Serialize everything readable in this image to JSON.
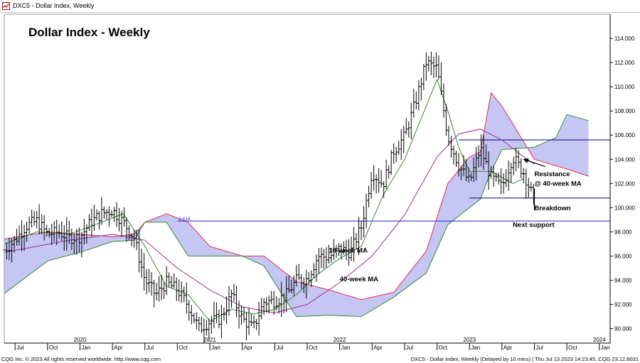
{
  "window": {
    "title": "DXC5 - Dollar Index, Weekly",
    "icon": "chart-window-icon"
  },
  "footer": {
    "left": "CQG Inc. © 2023 All rights reserved worldwide. http://www.cqg.com",
    "right": "DXC5 - Dollar Index, Weekly (Delayed by 10 mins) | Thu Jul 13 2023 14:23:45, CQG 23.12.8031"
  },
  "chart_data": {
    "type": "ohlc",
    "title": "Dollar Index - Weekly",
    "ylim": [
      88.8,
      116.0
    ],
    "y_ticks": [
      90,
      92,
      94,
      96,
      98,
      100,
      102,
      104,
      106,
      108,
      110,
      112,
      114
    ],
    "y_tick_labels": [
      "90.000",
      "92.000",
      "94.000",
      "96.000",
      "98.000",
      "100.000",
      "102.000",
      "104.000",
      "106.000",
      "108.000",
      "110.000",
      "112.000",
      "114.000"
    ],
    "x_start": "2019-06",
    "x_end": "2024-02",
    "month_ticks": [
      {
        "date": "2019-07",
        "label": "Jul"
      },
      {
        "date": "2019-10",
        "label": "Oct"
      },
      {
        "date": "2020-01",
        "label": "Jan"
      },
      {
        "date": "2020-04",
        "label": "Apr"
      },
      {
        "date": "2020-07",
        "label": "Jul"
      },
      {
        "date": "2020-10",
        "label": "Oct"
      },
      {
        "date": "2021-01",
        "label": "Jan"
      },
      {
        "date": "2021-04",
        "label": "Apr"
      },
      {
        "date": "2021-07",
        "label": "Jul"
      },
      {
        "date": "2021-10",
        "label": "Oct"
      },
      {
        "date": "2022-01",
        "label": "Jan"
      },
      {
        "date": "2022-04",
        "label": "Apr"
      },
      {
        "date": "2022-07",
        "label": "Jul"
      },
      {
        "date": "2022-10",
        "label": "Oct"
      },
      {
        "date": "2023-01",
        "label": "Jan"
      },
      {
        "date": "2023-04",
        "label": "Apr"
      },
      {
        "date": "2023-07",
        "label": "Jul"
      },
      {
        "date": "2023-10",
        "label": "Oct"
      },
      {
        "date": "2024-01",
        "label": "Jan"
      }
    ],
    "year_labels": [
      {
        "date": "2020-01",
        "label": "2020"
      },
      {
        "date": "2021-01",
        "label": "2021"
      },
      {
        "date": "2022-01",
        "label": "2022"
      },
      {
        "date": "2023-01",
        "label": "2023"
      },
      {
        "date": "2024-01",
        "label": "2024"
      }
    ],
    "price_close": [
      [
        "2019-06",
        96.5
      ],
      [
        "2019-07",
        97.3
      ],
      [
        "2019-08",
        98.5
      ],
      [
        "2019-09",
        98.9
      ],
      [
        "2019-10",
        97.8
      ],
      [
        "2019-11",
        98.0
      ],
      [
        "2019-12",
        97.5
      ],
      [
        "2020-01",
        97.6
      ],
      [
        "2020-02",
        98.8
      ],
      [
        "2020-03",
        99.5
      ],
      [
        "2020-04",
        99.8
      ],
      [
        "2020-05",
        98.8
      ],
      [
        "2020-06",
        97.5
      ],
      [
        "2020-07",
        94.0
      ],
      [
        "2020-08",
        92.8
      ],
      [
        "2020-09",
        93.8
      ],
      [
        "2020-10",
        93.2
      ],
      [
        "2020-11",
        91.9
      ],
      [
        "2020-12",
        90.0
      ],
      [
        "2021-01",
        90.6
      ],
      [
        "2021-02",
        90.8
      ],
      [
        "2021-03",
        92.8
      ],
      [
        "2021-04",
        90.8
      ],
      [
        "2021-05",
        90.0
      ],
      [
        "2021-06",
        92.2
      ],
      [
        "2021-07",
        92.3
      ],
      [
        "2021-08",
        92.7
      ],
      [
        "2021-09",
        94.0
      ],
      [
        "2021-10",
        94.1
      ],
      [
        "2021-11",
        96.0
      ],
      [
        "2021-12",
        95.9
      ],
      [
        "2022-01",
        96.6
      ],
      [
        "2022-02",
        96.3
      ],
      [
        "2022-03",
        98.4
      ],
      [
        "2022-04",
        103.0
      ],
      [
        "2022-05",
        101.9
      ],
      [
        "2022-06",
        104.7
      ],
      [
        "2022-07",
        105.9
      ],
      [
        "2022-08",
        108.7
      ],
      [
        "2022-09",
        112.0
      ],
      [
        "2022-10",
        111.5
      ],
      [
        "2022-11",
        105.9
      ],
      [
        "2022-12",
        103.5
      ],
      [
        "2023-01",
        102.1
      ],
      [
        "2023-02",
        104.9
      ],
      [
        "2023-03",
        102.5
      ],
      [
        "2023-04",
        101.7
      ],
      [
        "2023-05",
        104.2
      ],
      [
        "2023-06",
        102.9
      ],
      [
        "2023-07",
        100.6
      ]
    ],
    "ma10": [
      [
        "2019-06",
        97.0
      ],
      [
        "2019-09",
        98.0
      ],
      [
        "2019-12",
        97.8
      ],
      [
        "2020-03",
        98.8
      ],
      [
        "2020-05",
        99.5
      ],
      [
        "2020-07",
        96.8
      ],
      [
        "2020-09",
        93.5
      ],
      [
        "2020-11",
        92.8
      ],
      [
        "2021-01",
        90.6
      ],
      [
        "2021-03",
        91.6
      ],
      [
        "2021-05",
        91.2
      ],
      [
        "2021-07",
        91.6
      ],
      [
        "2021-09",
        92.8
      ],
      [
        "2021-11",
        94.5
      ],
      [
        "2022-01",
        95.8
      ],
      [
        "2022-03",
        96.8
      ],
      [
        "2022-05",
        101.0
      ],
      [
        "2022-07",
        104.0
      ],
      [
        "2022-09",
        108.4
      ],
      [
        "2022-10",
        110.6
      ],
      [
        "2022-11",
        108.0
      ],
      [
        "2022-12",
        105.0
      ],
      [
        "2023-01",
        103.0
      ],
      [
        "2023-03",
        103.0
      ],
      [
        "2023-05",
        102.0
      ],
      [
        "2023-06",
        102.4
      ]
    ],
    "ma40": [
      [
        "2019-06",
        96.3
      ],
      [
        "2019-12",
        97.3
      ],
      [
        "2020-04",
        97.8
      ],
      [
        "2020-07",
        97.3
      ],
      [
        "2020-10",
        95.0
      ],
      [
        "2021-01",
        93.2
      ],
      [
        "2021-04",
        91.8
      ],
      [
        "2021-07",
        91.3
      ],
      [
        "2021-10",
        92.0
      ],
      [
        "2022-01",
        93.8
      ],
      [
        "2022-04",
        96.0
      ],
      [
        "2022-07",
        99.4
      ],
      [
        "2022-10",
        104.2
      ],
      [
        "2022-12",
        106.1
      ],
      [
        "2023-02",
        106.5
      ],
      [
        "2023-04",
        105.6
      ],
      [
        "2023-06",
        104.2
      ],
      [
        "2023-07",
        103.6
      ]
    ],
    "cloud_upper": [
      [
        "2019-06",
        97.4
      ],
      [
        "2019-10",
        98.0
      ],
      [
        "2020-01",
        97.8
      ],
      [
        "2020-04",
        97.6
      ],
      [
        "2020-06",
        97.8
      ],
      [
        "2020-07",
        98.8
      ],
      [
        "2020-09",
        99.5
      ],
      [
        "2020-11",
        98.8
      ],
      [
        "2021-01",
        96.8
      ],
      [
        "2021-04",
        96.0
      ],
      [
        "2021-06",
        96.0
      ],
      [
        "2021-09",
        93.9
      ],
      [
        "2021-12",
        93.2
      ],
      [
        "2022-03",
        92.4
      ],
      [
        "2022-06",
        93.0
      ],
      [
        "2022-09",
        96.4
      ],
      [
        "2022-11",
        102.0
      ],
      [
        "2023-01",
        104.2
      ],
      [
        "2023-02",
        104.6
      ],
      [
        "2023-03",
        109.5
      ],
      [
        "2023-04",
        108.4
      ],
      [
        "2023-07",
        104.0
      ],
      [
        "2023-10",
        103.2
      ],
      [
        "2023-12",
        102.6
      ]
    ],
    "cloud_lower": [
      [
        "2019-06",
        92.9
      ],
      [
        "2019-10",
        95.6
      ],
      [
        "2020-01",
        96.3
      ],
      [
        "2020-04",
        97.2
      ],
      [
        "2020-06",
        97.3
      ],
      [
        "2020-07",
        98.8
      ],
      [
        "2020-09",
        98.8
      ],
      [
        "2020-11",
        96.0
      ],
      [
        "2021-01",
        96.0
      ],
      [
        "2021-04",
        96.0
      ],
      [
        "2021-06",
        95.2
      ],
      [
        "2021-09",
        91.0
      ],
      [
        "2021-12",
        91.1
      ],
      [
        "2022-03",
        91.0
      ],
      [
        "2022-06",
        92.6
      ],
      [
        "2022-09",
        94.6
      ],
      [
        "2022-11",
        98.6
      ],
      [
        "2023-01",
        100.0
      ],
      [
        "2023-02",
        100.7
      ],
      [
        "2023-03",
        103.0
      ],
      [
        "2023-04",
        104.8
      ],
      [
        "2023-07",
        105.0
      ],
      [
        "2023-09",
        105.8
      ],
      [
        "2023-10",
        107.7
      ],
      [
        "2023-12",
        107.2
      ]
    ],
    "horizontal_lines": [
      {
        "y": 105.6,
        "from": "2022-12",
        "to": "2024-02",
        "color": "#000080"
      },
      {
        "y": 100.8,
        "from": "2023-01",
        "to": "2024-02",
        "color": "#000080"
      },
      {
        "y": 98.9,
        "from": "2020-10",
        "to": "2024-02",
        "color": "#2020c0"
      }
    ],
    "fib_label": {
      "text": "0.618",
      "date": "2020-10",
      "y": 98.9
    },
    "annotations": [
      {
        "text": "10-week MA",
        "date": "2021-12",
        "y": 96.3
      },
      {
        "text": "40-week MA",
        "date": "2022-01",
        "y": 93.9
      },
      {
        "text": "Resistance",
        "date": "2023-07",
        "y": 102.6
      },
      {
        "text": "@ 40-week MA",
        "date": "2023-07",
        "y": 101.8
      },
      {
        "text": "Breakdown",
        "date": "2023-07",
        "y": 99.8
      },
      {
        "text": "Next support",
        "date": "2023-05",
        "y": 98.4
      }
    ],
    "arrows": [
      {
        "from_date": "2023-08",
        "from_y": 103.4,
        "to_date": "2023-06",
        "to_y": 104.0
      },
      {
        "from_date": "2023-07",
        "from_y": 101.6,
        "to_date": "2023-07",
        "to_y": 99.8
      }
    ],
    "colors": {
      "price": "#000000",
      "ma10": "#2e8b2e",
      "ma40": "#9b2a8f",
      "cloud_fill": "#c6c6f5",
      "cloud_upper": "#e0304a",
      "cloud_lower": "#2e8b2e",
      "hline": "#1e1ea0",
      "grid_border": "#9a9a9a"
    },
    "grid": false,
    "legend": "none"
  }
}
